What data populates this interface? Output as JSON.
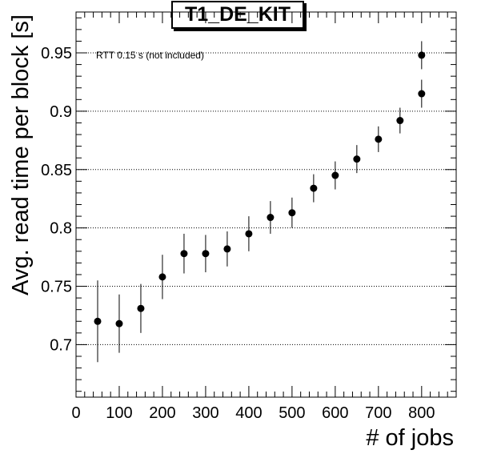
{
  "chart_data": {
    "type": "scatter",
    "title": "T1_DE_KIT",
    "xlabel": "# of jobs",
    "ylabel": "Avg. read time per block [s]",
    "annotation": "RTT 0.15 s (not included)",
    "xlim": [
      0,
      880
    ],
    "ylim": [
      0.655,
      0.985
    ],
    "x_ticks": [
      0,
      100,
      200,
      300,
      400,
      500,
      600,
      700,
      800
    ],
    "x_tick_labels": [
      "0",
      "100",
      "200",
      "300",
      "400",
      "500",
      "600",
      "700",
      "800"
    ],
    "y_ticks": [
      0.7,
      0.75,
      0.8,
      0.85,
      0.9,
      0.95
    ],
    "y_tick_labels": [
      "0.7",
      "0.75",
      "0.8",
      "0.85",
      "0.9",
      "0.95"
    ],
    "grid": "horizontal-dotted",
    "series": [
      {
        "points": [
          {
            "x": 50,
            "y": 0.72,
            "err_lo": 0.035,
            "err_hi": 0.035
          },
          {
            "x": 100,
            "y": 0.718,
            "err_lo": 0.025,
            "err_hi": 0.025
          },
          {
            "x": 150,
            "y": 0.731,
            "err_lo": 0.021,
            "err_hi": 0.021
          },
          {
            "x": 200,
            "y": 0.758,
            "err_lo": 0.019,
            "err_hi": 0.019
          },
          {
            "x": 250,
            "y": 0.778,
            "err_lo": 0.017,
            "err_hi": 0.017
          },
          {
            "x": 300,
            "y": 0.778,
            "err_lo": 0.016,
            "err_hi": 0.016
          },
          {
            "x": 350,
            "y": 0.782,
            "err_lo": 0.015,
            "err_hi": 0.015
          },
          {
            "x": 400,
            "y": 0.795,
            "err_lo": 0.015,
            "err_hi": 0.015
          },
          {
            "x": 450,
            "y": 0.809,
            "err_lo": 0.014,
            "err_hi": 0.014
          },
          {
            "x": 500,
            "y": 0.813,
            "err_lo": 0.013,
            "err_hi": 0.013
          },
          {
            "x": 550,
            "y": 0.834,
            "err_lo": 0.012,
            "err_hi": 0.012
          },
          {
            "x": 600,
            "y": 0.845,
            "err_lo": 0.012,
            "err_hi": 0.012
          },
          {
            "x": 650,
            "y": 0.859,
            "err_lo": 0.012,
            "err_hi": 0.012
          },
          {
            "x": 700,
            "y": 0.876,
            "err_lo": 0.011,
            "err_hi": 0.011
          },
          {
            "x": 750,
            "y": 0.892,
            "err_lo": 0.011,
            "err_hi": 0.011
          },
          {
            "x": 800,
            "y": 0.915,
            "err_lo": 0.012,
            "err_hi": 0.012
          },
          {
            "x": 800,
            "y": 0.948,
            "err_lo": 0.012,
            "err_hi": 0.012
          }
        ]
      }
    ]
  }
}
